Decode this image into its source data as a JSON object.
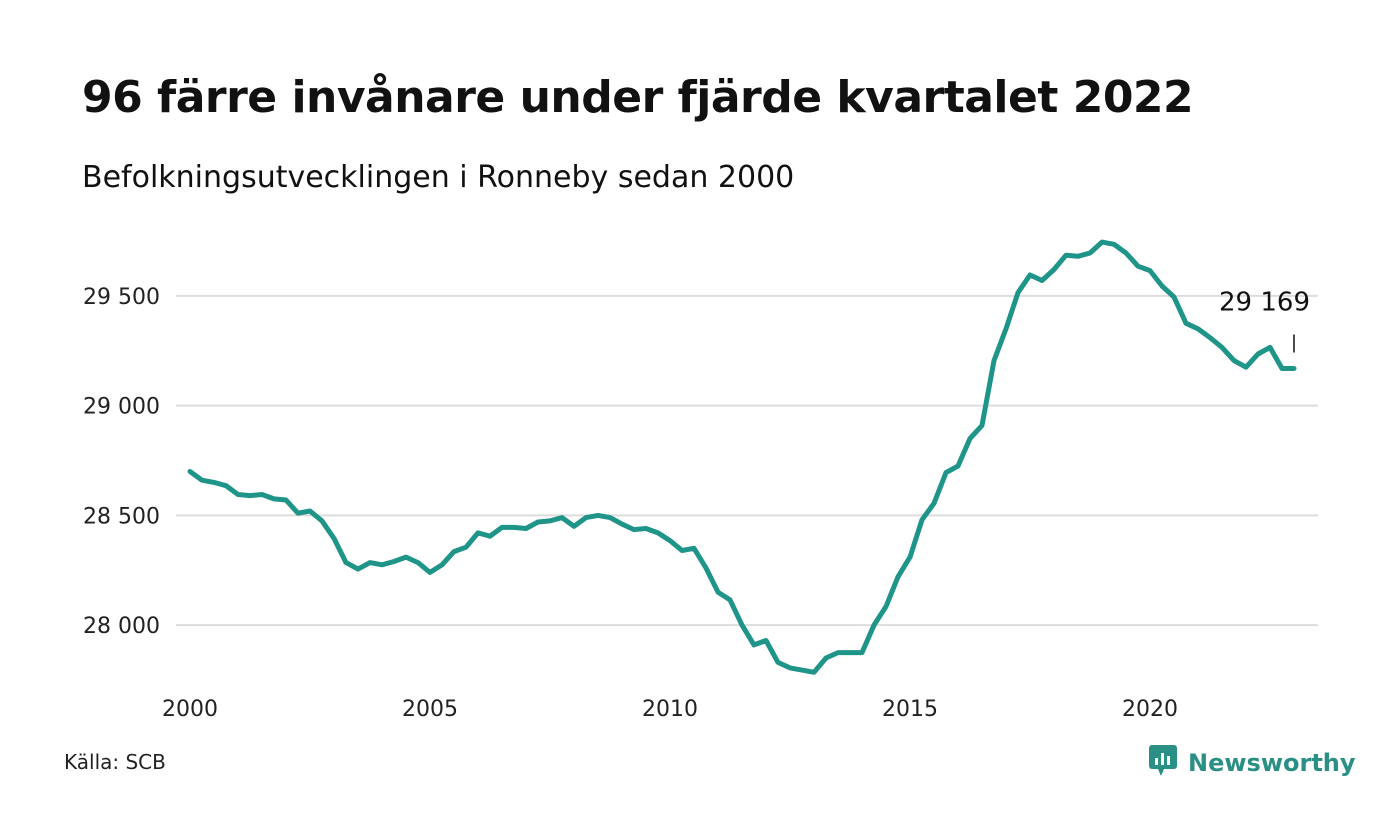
{
  "header": {
    "title": "96 färre invånare under fjärde kvartalet 2022",
    "subtitle": "Befolkningsutvecklingen i Ronneby sedan 2000"
  },
  "footer": {
    "source": "Källa: SCB",
    "brand": "Newsworthy",
    "brand_icon": "bar-chart-speech-bubble-icon"
  },
  "colors": {
    "line": "#1f9488",
    "grid": "#dddddd",
    "brand": "#2a8f84"
  },
  "chart_data": {
    "type": "line",
    "title": "96 färre invånare under fjärde kvartalet 2022",
    "subtitle": "Befolkningsutvecklingen i Ronneby sedan 2000",
    "xlabel": "",
    "ylabel": "",
    "grid": true,
    "xlim": [
      2000,
      2023.5
    ],
    "ylim": [
      27750,
      29800
    ],
    "x_ticks": [
      2000,
      2005,
      2010,
      2015,
      2020
    ],
    "x_tick_labels": [
      "2000",
      "2005",
      "2010",
      "2015",
      "2020"
    ],
    "y_ticks": [
      28000,
      28500,
      29000,
      29500
    ],
    "y_tick_labels": [
      "28 000",
      "28 500",
      "29 000",
      "29 500"
    ],
    "end_label": "29 169",
    "series": [
      {
        "x": [
          2000.0,
          2000.25,
          2000.5,
          2000.75,
          2001.0,
          2001.25,
          2001.5,
          2001.75,
          2002.0,
          2002.25,
          2002.5,
          2002.75,
          2003.0,
          2003.25,
          2003.5,
          2003.75,
          2004.0,
          2004.25,
          2004.5,
          2004.75,
          2005.0,
          2005.25,
          2005.5,
          2005.75,
          2006.0,
          2006.25,
          2006.5,
          2006.75,
          2007.0,
          2007.25,
          2007.5,
          2007.75,
          2008.0,
          2008.25,
          2008.5,
          2008.75,
          2009.0,
          2009.25,
          2009.5,
          2009.75,
          2010.0,
          2010.25,
          2010.5,
          2010.75,
          2011.0,
          2011.25,
          2011.5,
          2011.75,
          2012.0,
          2012.25,
          2012.5,
          2012.75,
          2013.0,
          2013.25,
          2013.5,
          2013.75,
          2014.0,
          2014.25,
          2014.5,
          2014.75,
          2015.0,
          2015.25,
          2015.5,
          2015.75,
          2016.0,
          2016.25,
          2016.5,
          2016.75,
          2017.0,
          2017.25,
          2017.5,
          2017.75,
          2018.0,
          2018.25,
          2018.5,
          2018.75,
          2019.0,
          2019.25,
          2019.5,
          2019.75,
          2020.0,
          2020.25,
          2020.5,
          2020.75,
          2021.0,
          2021.25,
          2021.5,
          2021.75,
          2022.0,
          2022.25,
          2022.5,
          2022.75,
          2023.0
        ],
        "values": [
          28700,
          28660,
          28650,
          28635,
          28595,
          28590,
          28595,
          28575,
          28570,
          28510,
          28520,
          28475,
          28395,
          28285,
          28255,
          28285,
          28275,
          28290,
          28310,
          28285,
          28240,
          28275,
          28335,
          28355,
          28420,
          28405,
          28445,
          28445,
          28440,
          28470,
          28475,
          28490,
          28450,
          28490,
          28500,
          28490,
          28460,
          28435,
          28440,
          28420,
          28385,
          28340,
          28350,
          28260,
          28150,
          28115,
          28000,
          27910,
          27930,
          27830,
          27805,
          27795,
          27785,
          27850,
          27875,
          27875,
          27875,
          28000,
          28085,
          28220,
          28310,
          28480,
          28555,
          28695,
          28725,
          28850,
          28910,
          29205,
          29350,
          29515,
          29595,
          29570,
          29620,
          29685,
          29680,
          29695,
          29745,
          29735,
          29695,
          29635,
          29615,
          29545,
          29495,
          29375,
          29350,
          29310,
          29265,
          29205,
          29175,
          29235,
          29265,
          29169,
          29169
        ]
      }
    ]
  }
}
